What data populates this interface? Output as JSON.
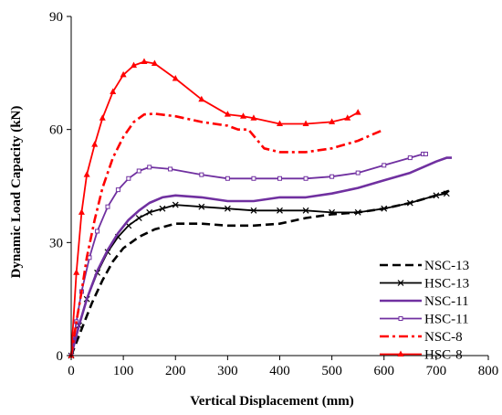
{
  "chart_data": {
    "type": "line",
    "title": "",
    "xlabel": "Vertical Displacement (mm)",
    "ylabel": "Dynamic Load Capacity (kN)",
    "xlim": [
      0,
      800
    ],
    "ylim": [
      0,
      90
    ],
    "x_ticks": [
      0,
      100,
      200,
      300,
      400,
      500,
      600,
      700,
      800
    ],
    "y_ticks": [
      0,
      30,
      60,
      90
    ],
    "grid": false,
    "legend_position": "bottom-right",
    "series": [
      {
        "name": "NSC-13",
        "color": "#000000",
        "style": "dashed",
        "marker": "none",
        "points": [
          [
            0,
            0
          ],
          [
            20,
            7
          ],
          [
            40,
            14
          ],
          [
            60,
            20
          ],
          [
            80,
            25
          ],
          [
            100,
            28.5
          ],
          [
            130,
            31.5
          ],
          [
            160,
            33.5
          ],
          [
            200,
            35
          ],
          [
            250,
            35
          ],
          [
            300,
            34.5
          ],
          [
            350,
            34.5
          ],
          [
            400,
            35
          ],
          [
            450,
            36.5
          ],
          [
            500,
            37.5
          ],
          [
            550,
            38
          ],
          [
            600,
            39
          ],
          [
            650,
            40.5
          ],
          [
            700,
            42.5
          ],
          [
            730,
            44
          ]
        ]
      },
      {
        "name": "HSC-13",
        "color": "#000000",
        "style": "solid",
        "marker": "x",
        "points": [
          [
            0,
            0
          ],
          [
            15,
            8
          ],
          [
            30,
            15
          ],
          [
            50,
            22
          ],
          [
            70,
            27.5
          ],
          [
            90,
            31.5
          ],
          [
            110,
            34.5
          ],
          [
            130,
            36.5
          ],
          [
            150,
            38
          ],
          [
            175,
            39
          ],
          [
            200,
            40
          ],
          [
            250,
            39.5
          ],
          [
            300,
            39
          ],
          [
            350,
            38.5
          ],
          [
            400,
            38.5
          ],
          [
            450,
            38.5
          ],
          [
            500,
            38
          ],
          [
            550,
            38
          ],
          [
            600,
            39
          ],
          [
            650,
            40.5
          ],
          [
            700,
            42.5
          ],
          [
            720,
            43
          ]
        ]
      },
      {
        "name": "NSC-11",
        "color": "#7030A0",
        "style": "solid",
        "marker": "none",
        "points": [
          [
            0,
            0
          ],
          [
            15,
            8
          ],
          [
            30,
            15
          ],
          [
            50,
            22.5
          ],
          [
            70,
            28
          ],
          [
            90,
            32.5
          ],
          [
            110,
            36
          ],
          [
            130,
            38.5
          ],
          [
            150,
            40.5
          ],
          [
            175,
            42
          ],
          [
            200,
            42.5
          ],
          [
            250,
            42
          ],
          [
            300,
            41
          ],
          [
            350,
            41
          ],
          [
            400,
            42
          ],
          [
            450,
            42
          ],
          [
            500,
            43
          ],
          [
            550,
            44.5
          ],
          [
            600,
            46.5
          ],
          [
            650,
            48.5
          ],
          [
            700,
            51.5
          ],
          [
            720,
            52.5
          ],
          [
            730,
            52.5
          ]
        ]
      },
      {
        "name": "HSC-11",
        "color": "#7030A0",
        "style": "solid",
        "marker": "square",
        "points": [
          [
            0,
            0
          ],
          [
            10,
            9
          ],
          [
            20,
            17
          ],
          [
            35,
            26
          ],
          [
            50,
            33
          ],
          [
            70,
            39.5
          ],
          [
            90,
            44
          ],
          [
            110,
            47
          ],
          [
            130,
            49
          ],
          [
            150,
            50
          ],
          [
            190,
            49.5
          ],
          [
            250,
            48
          ],
          [
            300,
            47
          ],
          [
            350,
            47
          ],
          [
            400,
            47
          ],
          [
            450,
            47
          ],
          [
            500,
            47.5
          ],
          [
            550,
            48.5
          ],
          [
            600,
            50.5
          ],
          [
            650,
            52.5
          ],
          [
            675,
            53.5
          ],
          [
            680,
            53.5
          ]
        ]
      },
      {
        "name": "NSC-8",
        "color": "#FF0000",
        "style": "dashdot",
        "marker": "none",
        "points": [
          [
            0,
            0
          ],
          [
            10,
            9
          ],
          [
            20,
            17
          ],
          [
            30,
            26
          ],
          [
            45,
            36
          ],
          [
            60,
            44.5
          ],
          [
            80,
            52.5
          ],
          [
            100,
            58
          ],
          [
            120,
            62
          ],
          [
            140,
            64
          ],
          [
            160,
            64.2
          ],
          [
            200,
            63.5
          ],
          [
            250,
            62
          ],
          [
            300,
            61
          ],
          [
            320,
            60
          ],
          [
            340,
            60
          ],
          [
            370,
            55
          ],
          [
            400,
            54
          ],
          [
            450,
            54
          ],
          [
            500,
            55
          ],
          [
            550,
            57
          ],
          [
            600,
            60
          ]
        ]
      },
      {
        "name": "HSC-8",
        "color": "#FF0000",
        "style": "solid",
        "marker": "triangle",
        "points": [
          [
            0,
            0
          ],
          [
            10,
            22
          ],
          [
            20,
            38
          ],
          [
            30,
            48
          ],
          [
            45,
            56
          ],
          [
            60,
            63
          ],
          [
            80,
            70
          ],
          [
            100,
            74.5
          ],
          [
            120,
            77
          ],
          [
            140,
            78
          ],
          [
            160,
            77.5
          ],
          [
            200,
            73.5
          ],
          [
            250,
            68
          ],
          [
            300,
            64
          ],
          [
            330,
            63.5
          ],
          [
            350,
            63
          ],
          [
            400,
            61.5
          ],
          [
            450,
            61.5
          ],
          [
            500,
            62
          ],
          [
            530,
            63
          ],
          [
            550,
            64.5
          ]
        ]
      }
    ]
  }
}
